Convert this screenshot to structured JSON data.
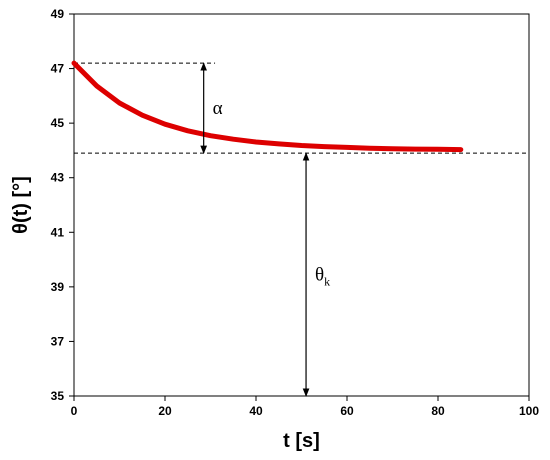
{
  "chart_data": {
    "type": "line",
    "xlabel": "t [s]",
    "ylabel": "θ(t) [°]",
    "xlim": [
      0,
      100
    ],
    "ylim": [
      35,
      49
    ],
    "x_ticks": [
      0,
      20,
      40,
      60,
      80,
      100
    ],
    "y_ticks": [
      35,
      37,
      39,
      41,
      43,
      45,
      47,
      49
    ],
    "grid": false,
    "legend": "none",
    "series": [
      {
        "color": "#dd0000",
        "x": [
          0,
          5,
          10,
          15,
          20,
          25,
          30,
          35,
          40,
          45,
          50,
          55,
          60,
          65,
          70,
          75,
          80,
          85
        ],
        "y": [
          47.2,
          46.36,
          45.74,
          45.29,
          44.96,
          44.72,
          44.54,
          44.41,
          44.31,
          44.24,
          44.18,
          44.14,
          44.11,
          44.08,
          44.06,
          44.05,
          44.04,
          44.03
        ]
      }
    ],
    "reference_lines": {
      "upper_y": 47.2,
      "upper_x_end": 31,
      "lower_y": 43.9
    },
    "annotations": [
      {
        "id": "alpha",
        "text": "α",
        "x": 28.5,
        "y_from": 43.9,
        "y_to": 47.2
      },
      {
        "id": "theta_k",
        "text": "θ",
        "subscript": "k",
        "x": 51,
        "y_from": 35,
        "y_to": 43.9
      }
    ]
  }
}
